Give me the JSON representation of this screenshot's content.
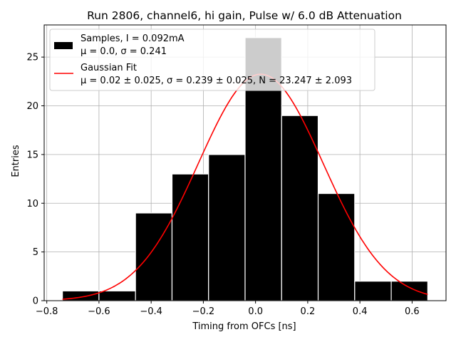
{
  "chart_data": {
    "type": "bar",
    "title": "Run 2806, channel6, hi gain, Pulse w/ 6.0 dB Attenuation",
    "xlabel": "Timing from OFCs [ns]",
    "ylabel": "Entries",
    "xlim": [
      -0.81,
      0.73
    ],
    "ylim": [
      0,
      28.3
    ],
    "xticks": [
      -0.8,
      -0.6,
      -0.4,
      -0.2,
      0.0,
      0.2,
      0.4,
      0.6
    ],
    "xtick_labels": [
      "−0.8",
      "−0.6",
      "−0.4",
      "−0.2",
      "0.0",
      "0.2",
      "0.4",
      "0.6"
    ],
    "yticks": [
      0,
      5,
      10,
      15,
      20,
      25
    ],
    "ytick_labels": [
      "0",
      "5",
      "10",
      "15",
      "20",
      "25"
    ],
    "grid": true,
    "legend_position": "top-left",
    "histogram": {
      "name": "Samples, I = 0.092mA",
      "stats_label": "μ = 0.0, σ = 0.241",
      "color": "#000000",
      "edge_color": "#ffffff",
      "bins": [
        {
          "x0": -0.74,
          "x1": -0.6,
          "count": 1
        },
        {
          "x0": -0.6,
          "x1": -0.46,
          "count": 1
        },
        {
          "x0": -0.46,
          "x1": -0.32,
          "count": 9
        },
        {
          "x0": -0.32,
          "x1": -0.18,
          "count": 13
        },
        {
          "x0": -0.18,
          "x1": -0.04,
          "count": 15
        },
        {
          "x0": -0.04,
          "x1": 0.1,
          "count": 27
        },
        {
          "x0": 0.1,
          "x1": 0.24,
          "count": 19
        },
        {
          "x0": 0.24,
          "x1": 0.38,
          "count": 11
        },
        {
          "x0": 0.38,
          "x1": 0.52,
          "count": 2
        },
        {
          "x0": 0.52,
          "x1": 0.66,
          "count": 2
        }
      ]
    },
    "fit": {
      "name": "Gaussian Fit",
      "stats_label": "μ = 0.02 ± 0.025, σ = 0.239 ± 0.025, N = 23.247 ± 2.093",
      "color": "#ff0000",
      "mu": 0.02,
      "sigma": 0.239,
      "N": 23.247,
      "x_range": [
        -0.74,
        0.66
      ]
    }
  }
}
